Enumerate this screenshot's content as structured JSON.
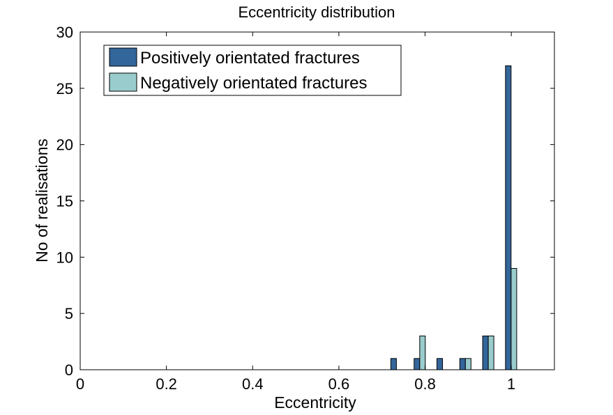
{
  "chart_data": {
    "type": "bar",
    "title": "Eccentricity distribution",
    "xlabel": "Eccentricity",
    "ylabel": "No of realisations",
    "xlim": [
      0,
      1.1
    ],
    "ylim": [
      0,
      30
    ],
    "xticks": [
      0,
      0.2,
      0.4,
      0.6,
      0.8,
      1
    ],
    "xtick_labels": [
      "0",
      "0.2",
      "0.4",
      "0.6",
      "0.8",
      "1"
    ],
    "yticks": [
      0,
      5,
      10,
      15,
      20,
      25,
      30
    ],
    "ytick_labels": [
      "0",
      "5",
      "10",
      "15",
      "20",
      "25",
      "30"
    ],
    "grid": false,
    "legend_position": "top-left",
    "series": [
      {
        "name": "Positively orientated fractures",
        "color": "#33669a",
        "x": [
          0.727,
          0.781,
          0.834,
          0.887,
          0.94,
          0.993
        ],
        "values": [
          1,
          1,
          1,
          1,
          3,
          27
        ]
      },
      {
        "name": "Negatively orientated fractures",
        "color": "#99cccc",
        "x": [
          0.794,
          0.9,
          0.953,
          1.006
        ],
        "values": [
          3,
          1,
          3,
          9
        ]
      }
    ]
  }
}
